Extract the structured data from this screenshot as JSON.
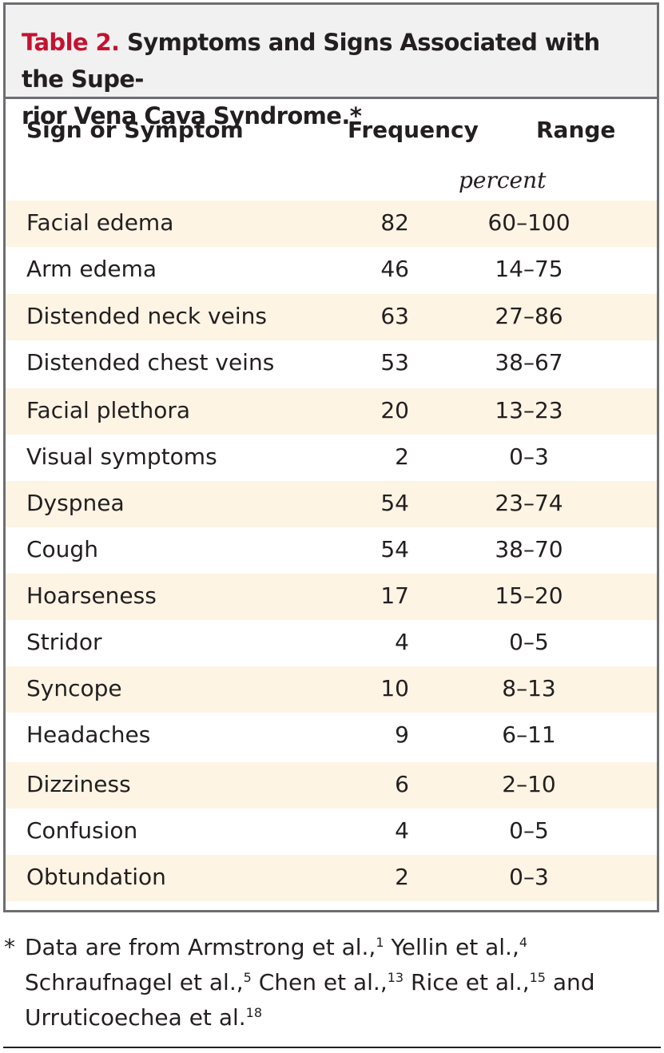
{
  "table": {
    "label": "Table 2.",
    "title_line1": " Symptoms and Signs Associated with the Supe-",
    "title_line2": "rior Vena Cava Syndrome.*",
    "headers": {
      "sign": "Sign or Symptom",
      "frequency": "Frequency",
      "range": "Range"
    },
    "units": "percent",
    "rows": [
      {
        "sign": "Facial edema",
        "frequency": "82",
        "range": "60–100"
      },
      {
        "sign": "Arm edema",
        "frequency": "46",
        "range": "14–75"
      },
      {
        "sign": "Distended neck veins",
        "frequency": "63",
        "range": "27–86"
      },
      {
        "sign": "Distended chest veins",
        "frequency": "53",
        "range": "38–67"
      },
      {
        "sign": "Facial plethora",
        "frequency": "20",
        "range": "13–23"
      },
      {
        "sign": "Visual symptoms",
        "frequency": "2",
        "range": "0–3"
      },
      {
        "sign": "Dyspnea",
        "frequency": "54",
        "range": "23–74"
      },
      {
        "sign": "Cough",
        "frequency": "54",
        "range": "38–70"
      },
      {
        "sign": "Hoarseness",
        "frequency": "17",
        "range": "15–20"
      },
      {
        "sign": "Stridor",
        "frequency": "4",
        "range": "0–5"
      },
      {
        "sign": "Syncope",
        "frequency": "10",
        "range": "8–13"
      },
      {
        "sign": "Headaches",
        "frequency": "9",
        "range": "6–11"
      },
      {
        "sign": "Dizziness",
        "frequency": "6",
        "range": "2–10"
      },
      {
        "sign": "Confusion",
        "frequency": "4",
        "range": "0–5"
      },
      {
        "sign": "Obtundation",
        "frequency": "2",
        "range": "0–3"
      }
    ]
  },
  "footnote": {
    "marker": "*",
    "parts": [
      {
        "text": "Data are from Armstrong et al.,",
        "ref": "1"
      },
      {
        "text": " Yellin et al.,",
        "ref": "4"
      },
      {
        "text": " Schraufnagel et al.,",
        "ref": "5"
      },
      {
        "text": " Chen et al.,",
        "ref": "13"
      },
      {
        "text": " Rice et al.,",
        "ref": "15"
      },
      {
        "text": " and Urruticoechea et al.",
        "ref": "18"
      }
    ]
  }
}
